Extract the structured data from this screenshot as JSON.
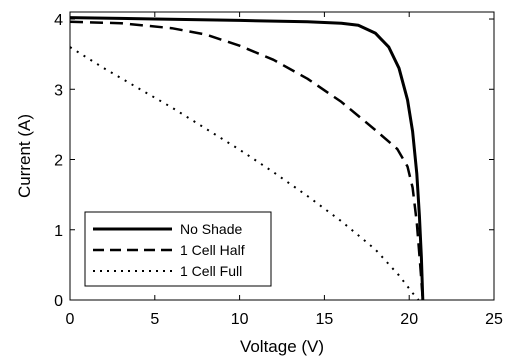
{
  "chart_data": {
    "type": "line",
    "title": "",
    "xlabel": "Voltage (V)",
    "ylabel": "Current (A)",
    "xlim": [
      0,
      25
    ],
    "ylim": [
      0,
      4.1
    ],
    "xticks": [
      0,
      5,
      10,
      15,
      20,
      25
    ],
    "yticks": [
      0,
      1,
      2,
      3,
      4
    ],
    "grid": false,
    "legend_position": "bottom-left",
    "series": [
      {
        "name": "No Shade",
        "style": "solid",
        "color": "#000000",
        "points": [
          [
            0,
            4.02
          ],
          [
            5,
            4.0
          ],
          [
            10,
            3.98
          ],
          [
            14,
            3.96
          ],
          [
            16,
            3.94
          ],
          [
            17,
            3.91
          ],
          [
            18,
            3.8
          ],
          [
            18.8,
            3.6
          ],
          [
            19.4,
            3.3
          ],
          [
            19.9,
            2.85
          ],
          [
            20.2,
            2.4
          ],
          [
            20.45,
            1.8
          ],
          [
            20.6,
            1.2
          ],
          [
            20.72,
            0.6
          ],
          [
            20.8,
            0.0
          ]
        ]
      },
      {
        "name": "1 Cell Half",
        "style": "dashed",
        "color": "#000000",
        "points": [
          [
            0,
            3.96
          ],
          [
            3,
            3.94
          ],
          [
            6,
            3.87
          ],
          [
            8,
            3.78
          ],
          [
            10,
            3.62
          ],
          [
            12,
            3.42
          ],
          [
            14,
            3.15
          ],
          [
            16,
            2.82
          ],
          [
            18,
            2.42
          ],
          [
            19.3,
            2.15
          ],
          [
            19.9,
            1.9
          ],
          [
            20.2,
            1.6
          ],
          [
            20.45,
            1.1
          ],
          [
            20.65,
            0.5
          ],
          [
            20.8,
            0.0
          ]
        ]
      },
      {
        "name": "1 Cell Full",
        "style": "dotted",
        "color": "#000000",
        "points": [
          [
            0,
            3.6
          ],
          [
            2,
            3.3
          ],
          [
            4,
            3.02
          ],
          [
            6,
            2.74
          ],
          [
            8,
            2.44
          ],
          [
            10,
            2.14
          ],
          [
            12,
            1.82
          ],
          [
            14,
            1.48
          ],
          [
            16,
            1.12
          ],
          [
            18,
            0.72
          ],
          [
            19.4,
            0.35
          ],
          [
            20.2,
            0.1
          ],
          [
            20.55,
            0.0
          ]
        ]
      }
    ]
  }
}
